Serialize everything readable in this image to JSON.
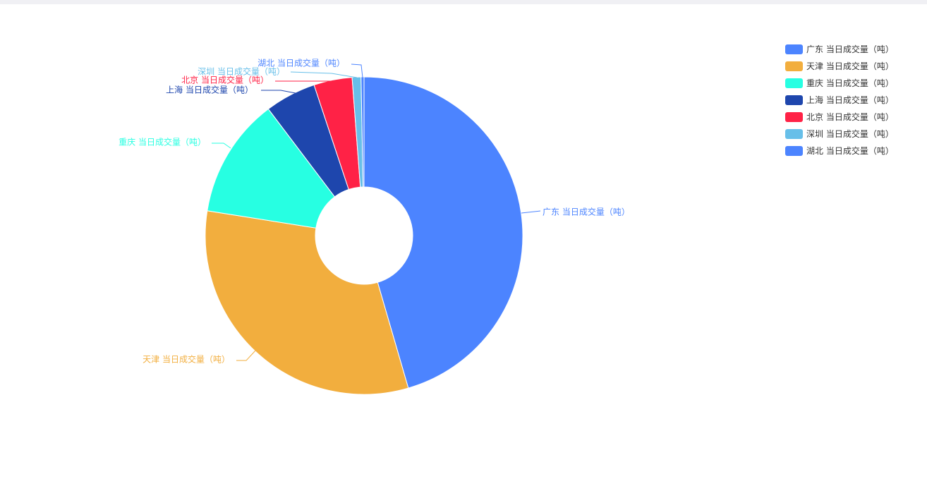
{
  "chart_data": {
    "type": "pie",
    "donut": true,
    "legend_position": "top-right",
    "slices": [
      {
        "label": "广东 当日成交量（吨）",
        "value": 45.5,
        "color": "#4c84ff"
      },
      {
        "label": "天津 当日成交量（吨）",
        "value": 32.0,
        "color": "#f2ae3e"
      },
      {
        "label": "重庆 当日成交量（吨）",
        "value": 12.2,
        "color": "#27ffe2"
      },
      {
        "label": "上海 当日成交量（吨）",
        "value": 5.2,
        "color": "#1e46ad"
      },
      {
        "label": "北京 当日成交量（吨）",
        "value": 3.9,
        "color": "#ff2246"
      },
      {
        "label": "深圳 当日成交量（吨）",
        "value": 0.9,
        "color": "#67bfe9"
      },
      {
        "label": "湖北 当日成交量（吨）",
        "value": 0.3,
        "color": "#4c84ff"
      }
    ]
  }
}
